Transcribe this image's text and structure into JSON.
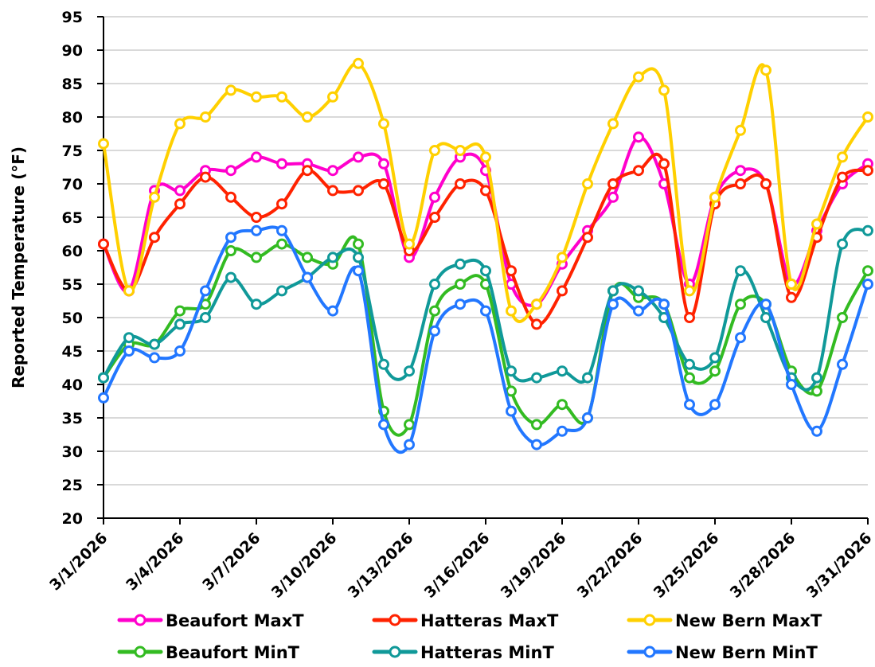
{
  "chart_data": {
    "type": "line",
    "title": "",
    "xlabel": "",
    "ylabel": "Reported Temperature (°F)",
    "ylim": [
      20,
      95
    ],
    "yticks": [
      20,
      25,
      30,
      35,
      40,
      45,
      50,
      55,
      60,
      65,
      70,
      75,
      80,
      85,
      90,
      95
    ],
    "grid": "horizontal",
    "legend_position": "bottom",
    "x": [
      "3/1/2026",
      "3/2/2026",
      "3/3/2026",
      "3/4/2026",
      "3/5/2026",
      "3/6/2026",
      "3/7/2026",
      "3/8/2026",
      "3/9/2026",
      "3/10/2026",
      "3/11/2026",
      "3/12/2026",
      "3/13/2026",
      "3/14/2026",
      "3/15/2026",
      "3/16/2026",
      "3/17/2026",
      "3/18/2026",
      "3/19/2026",
      "3/20/2026",
      "3/21/2026",
      "3/22/2026",
      "3/23/2026",
      "3/24/2026",
      "3/25/2026",
      "3/26/2026",
      "3/27/2026",
      "3/28/2026",
      "3/29/2026",
      "3/30/2026",
      "3/31/2026"
    ],
    "xtick_labels": [
      "3/1/2026",
      "3/4/2026",
      "3/7/2026",
      "3/10/2026",
      "3/13/2026",
      "3/16/2026",
      "3/19/2026",
      "3/22/2026",
      "3/25/2026",
      "3/28/2026",
      "3/31/2026"
    ],
    "series": [
      {
        "name": "Beaufort MaxT",
        "color": "#ff00cc",
        "values": [
          61,
          54,
          69,
          69,
          72,
          72,
          74,
          73,
          73,
          72,
          74,
          73,
          59,
          68,
          74,
          72,
          55,
          52,
          58,
          63,
          68,
          77,
          70,
          55,
          68,
          72,
          70,
          55,
          63,
          70,
          73
        ]
      },
      {
        "name": "Hatteras MaxT",
        "color": "#ff2200",
        "values": [
          61,
          54,
          62,
          67,
          71,
          68,
          65,
          67,
          72,
          69,
          69,
          70,
          60,
          65,
          70,
          69,
          57,
          49,
          54,
          62,
          70,
          72,
          73,
          50,
          67,
          70,
          70,
          53,
          62,
          71,
          72
        ]
      },
      {
        "name": "New Bern MaxT",
        "color": "#ffd000",
        "values": [
          76,
          54,
          68,
          79,
          80,
          84,
          83,
          83,
          80,
          83,
          88,
          79,
          61,
          75,
          75,
          74,
          51,
          52,
          59,
          70,
          79,
          86,
          84,
          54,
          68,
          78,
          87,
          55,
          64,
          74,
          80
        ]
      },
      {
        "name": "Beaufort MinT",
        "color": "#33bb22",
        "values": [
          41,
          46,
          46,
          51,
          52,
          60,
          59,
          61,
          59,
          58,
          61,
          36,
          34,
          51,
          55,
          55,
          39,
          34,
          37,
          35,
          54,
          53,
          52,
          41,
          42,
          52,
          52,
          42,
          39,
          50,
          57
        ]
      },
      {
        "name": "Hatteras MinT",
        "color": "#109999",
        "values": [
          41,
          47,
          46,
          49,
          50,
          56,
          52,
          54,
          56,
          59,
          59,
          43,
          42,
          55,
          58,
          57,
          42,
          41,
          42,
          41,
          54,
          54,
          50,
          43,
          44,
          57,
          50,
          41,
          41,
          61,
          63
        ]
      },
      {
        "name": "New Bern MinT",
        "color": "#2277ff",
        "values": [
          38,
          45,
          44,
          45,
          54,
          62,
          63,
          63,
          56,
          51,
          57,
          34,
          31,
          48,
          52,
          51,
          36,
          31,
          33,
          35,
          52,
          51,
          52,
          37,
          37,
          47,
          52,
          40,
          33,
          43,
          55
        ]
      }
    ]
  }
}
